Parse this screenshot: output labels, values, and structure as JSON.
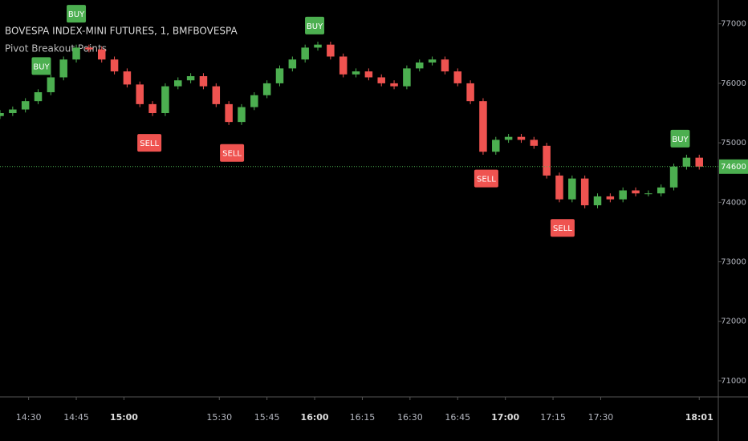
{
  "chart_data": {
    "type": "candlestick",
    "title": "BOVESPA INDEX-MINI FUTURES, 1, BMFBOVESPA",
    "subtitle": "Pivot Breakout Points",
    "up_color": "#4caf50",
    "down_color": "#ef5350",
    "x": [
      861,
      865,
      869,
      873,
      877,
      881,
      885,
      889,
      893,
      897,
      901,
      905,
      909,
      913,
      917,
      921,
      925,
      929,
      933,
      937,
      941,
      945,
      949,
      953,
      957,
      961,
      965,
      969,
      973,
      977,
      981,
      985,
      989,
      993,
      997,
      1001,
      1005,
      1009,
      1013,
      1017,
      1021,
      1025,
      1029,
      1033,
      1037,
      1041,
      1045,
      1049,
      1053,
      1057,
      1061,
      1065,
      1069,
      1073,
      1077,
      1081
    ],
    "open": [
      75450,
      75500,
      75560,
      75700,
      75850,
      76100,
      76400,
      76600,
      76570,
      76400,
      76200,
      75980,
      75650,
      75500,
      75950,
      76050,
      76120,
      75950,
      75650,
      75350,
      75600,
      75800,
      76000,
      76250,
      76400,
      76600,
      76650,
      76450,
      76150,
      76200,
      76100,
      76000,
      75950,
      76250,
      76350,
      76400,
      76200,
      76000,
      75700,
      74850,
      75050,
      75100,
      75050,
      74950,
      74450,
      74050,
      74400,
      73950,
      74100,
      74050,
      74200,
      74150,
      74150,
      74250,
      74600,
      74750
    ],
    "high": [
      75550,
      75610,
      75750,
      75900,
      76150,
      76450,
      76650,
      76650,
      76620,
      76450,
      76250,
      76030,
      75700,
      76000,
      76100,
      76170,
      76170,
      76000,
      75700,
      75650,
      75850,
      76050,
      76300,
      76450,
      76650,
      76700,
      76700,
      76500,
      76250,
      76250,
      76150,
      76050,
      76300,
      76400,
      76450,
      76450,
      76250,
      76050,
      75750,
      75100,
      75150,
      75150,
      75100,
      75000,
      74500,
      74450,
      74450,
      74150,
      74150,
      74250,
      74250,
      74200,
      74300,
      74650,
      74800,
      74800
    ],
    "low": [
      75400,
      75450,
      75510,
      75650,
      75800,
      76050,
      76350,
      76520,
      76350,
      76150,
      75930,
      75600,
      75450,
      75450,
      75900,
      76000,
      75900,
      75600,
      75300,
      75300,
      75550,
      75750,
      75950,
      76200,
      76350,
      76550,
      76400,
      76100,
      76100,
      76050,
      75950,
      75900,
      75900,
      76200,
      76300,
      76150,
      75950,
      75650,
      74800,
      74800,
      75000,
      75000,
      74900,
      74400,
      74000,
      74000,
      73900,
      73900,
      74000,
      74000,
      74100,
      74100,
      74100,
      74200,
      74550,
      74550
    ],
    "close": [
      75500,
      75560,
      75700,
      75850,
      76100,
      76400,
      76600,
      76570,
      76400,
      76200,
      75980,
      75650,
      75500,
      75950,
      76050,
      76120,
      75950,
      75650,
      75350,
      75600,
      75800,
      76000,
      76250,
      76400,
      76600,
      76650,
      76450,
      76150,
      76200,
      76100,
      76000,
      75950,
      76250,
      76350,
      76400,
      76200,
      76000,
      75700,
      74850,
      75050,
      75100,
      75050,
      74950,
      74450,
      74050,
      74400,
      73950,
      74100,
      74050,
      74200,
      74150,
      74150,
      74250,
      74600,
      74750,
      74600
    ],
    "signals": [
      {
        "label": "BUY",
        "x": 874,
        "price": 76290
      },
      {
        "label": "BUY",
        "x": 885,
        "price": 77170
      },
      {
        "label": "SELL",
        "x": 908,
        "price": 75000
      },
      {
        "label": "SELL",
        "x": 934,
        "price": 74830
      },
      {
        "label": "BUY",
        "x": 960,
        "price": 76970
      },
      {
        "label": "SELL",
        "x": 1014,
        "price": 74400
      },
      {
        "label": "SELL",
        "x": 1038,
        "price": 73570
      },
      {
        "label": "BUY",
        "x": 1075,
        "price": 75070
      }
    ],
    "last_price": 74600,
    "xlim": [
      861,
      1087
    ],
    "ylim": [
      70730,
      77400
    ],
    "yticks": [
      71000,
      72000,
      73000,
      74000,
      75000,
      76000,
      77000
    ],
    "xticks": [
      {
        "value": 870,
        "label": "14:30"
      },
      {
        "value": 885,
        "label": "14:45"
      },
      {
        "value": 900,
        "label": "15:00"
      },
      {
        "value": 930,
        "label": "15:30"
      },
      {
        "value": 945,
        "label": "15:45"
      },
      {
        "value": 960,
        "label": "16:00"
      },
      {
        "value": 975,
        "label": "16:15"
      },
      {
        "value": 990,
        "label": "16:30"
      },
      {
        "value": 1005,
        "label": "16:45"
      },
      {
        "value": 1020,
        "label": "17:00"
      },
      {
        "value": 1035,
        "label": "17:15"
      },
      {
        "value": 1050,
        "label": "17:30"
      },
      {
        "value": 1081,
        "label": "18:01"
      }
    ]
  }
}
